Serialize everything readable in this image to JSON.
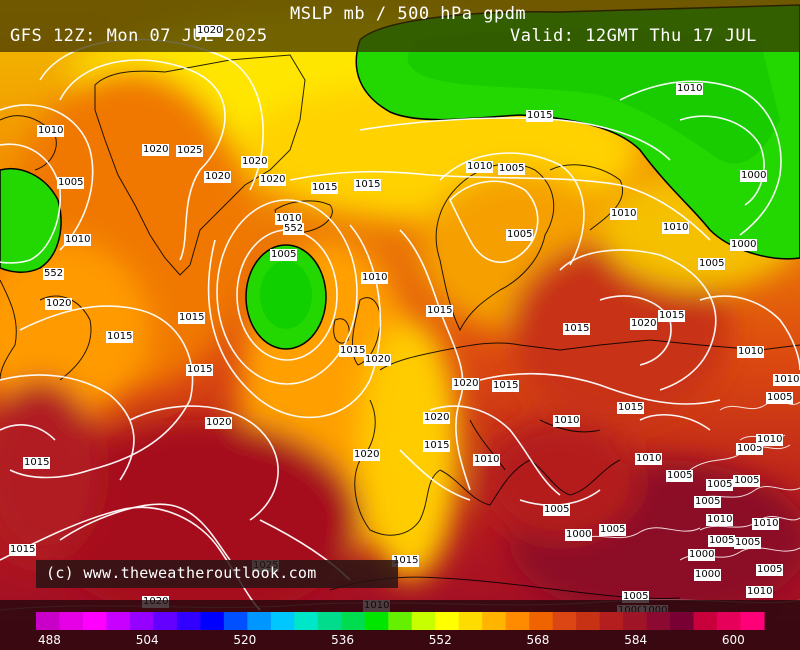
{
  "header": {
    "title": "MSLP mb / 500 hPa gpdm",
    "run": "GFS 12Z: Mon 07 JUL 2025",
    "valid": "Valid: 12GMT Thu 17 JUL"
  },
  "credit": "(c) www.theweatheroutlook.com",
  "colorbar": {
    "ticks": [
      "488",
      "504",
      "520",
      "536",
      "552",
      "568",
      "584",
      "600"
    ],
    "colors": [
      "#c800c8",
      "#e600e6",
      "#ff00ff",
      "#c800ff",
      "#9600ff",
      "#6400ff",
      "#3200ff",
      "#0000ff",
      "#0050ff",
      "#0096ff",
      "#00c8ff",
      "#00e6c8",
      "#00dc8c",
      "#00dc50",
      "#00e600",
      "#64f000",
      "#c8ff00",
      "#ffff00",
      "#ffdc00",
      "#ffb400",
      "#ff8c00",
      "#f06400",
      "#dc4614",
      "#c83214",
      "#b41e1e",
      "#a01428",
      "#8c0a32",
      "#780032",
      "#c8003c",
      "#e6005a",
      "#ff0078"
    ]
  },
  "pressure_labels": [
    "1010",
    "1005",
    "1010",
    "552",
    "1020",
    "1020",
    "1025",
    "1020",
    "1020",
    "1020",
    "1015",
    "1015",
    "1010",
    "552",
    "1005",
    "1015",
    "1015",
    "1015",
    "1020",
    "1010",
    "1015",
    "1015",
    "1020",
    "1015",
    "1010",
    "1005",
    "1005",
    "1015",
    "1015",
    "1020",
    "1010",
    "1000",
    "1000",
    "1010",
    "1005",
    "1020",
    "1015",
    "1010",
    "1020",
    "1015",
    "1010",
    "1015",
    "1020",
    "1015",
    "1010",
    "1015",
    "1010",
    "1005",
    "1010",
    "1005",
    "1005",
    "1005",
    "1010",
    "1005",
    "1005",
    "1000",
    "1005",
    "1000",
    "1010",
    "1005",
    "1000",
    "1005",
    "1005",
    "1000",
    "1010",
    "1020",
    "1025",
    "1015",
    "1020",
    "1005",
    "1000",
    "1005",
    "1010",
    "1010",
    "1010",
    "1020"
  ]
}
